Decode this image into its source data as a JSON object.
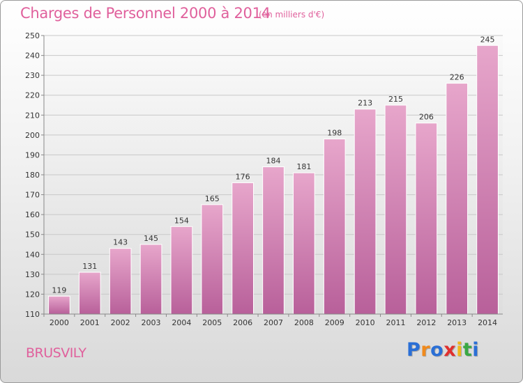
{
  "title": "Charges de Personnel 2000 à 2014",
  "subtitle": "(en milliers d'€)",
  "commune": "BRUSVILY",
  "logo": {
    "letters": [
      {
        "ch": "P",
        "color": "#2a6fd6"
      },
      {
        "ch": "r",
        "color": "#f08a1c"
      },
      {
        "ch": "o",
        "color": "#2a6fd6"
      },
      {
        "ch": "x",
        "color": "#e0302e"
      },
      {
        "ch": "i",
        "color": "#f0b81c"
      },
      {
        "ch": "t",
        "color": "#3aa844"
      },
      {
        "ch": "i",
        "color": "#2a6fd6"
      }
    ]
  },
  "chart_data": {
    "type": "bar",
    "categories": [
      "2000",
      "2001",
      "2002",
      "2003",
      "2004",
      "2005",
      "2006",
      "2007",
      "2008",
      "2009",
      "2010",
      "2011",
      "2012",
      "2013",
      "2014"
    ],
    "values": [
      119,
      131,
      143,
      145,
      154,
      165,
      176,
      184,
      181,
      198,
      213,
      215,
      206,
      226,
      245
    ],
    "ylim": [
      110,
      250
    ],
    "yticks": [
      110,
      120,
      130,
      140,
      150,
      160,
      170,
      180,
      190,
      200,
      210,
      220,
      230,
      240,
      250
    ],
    "grid": true,
    "bar_color": "#d67fae"
  }
}
